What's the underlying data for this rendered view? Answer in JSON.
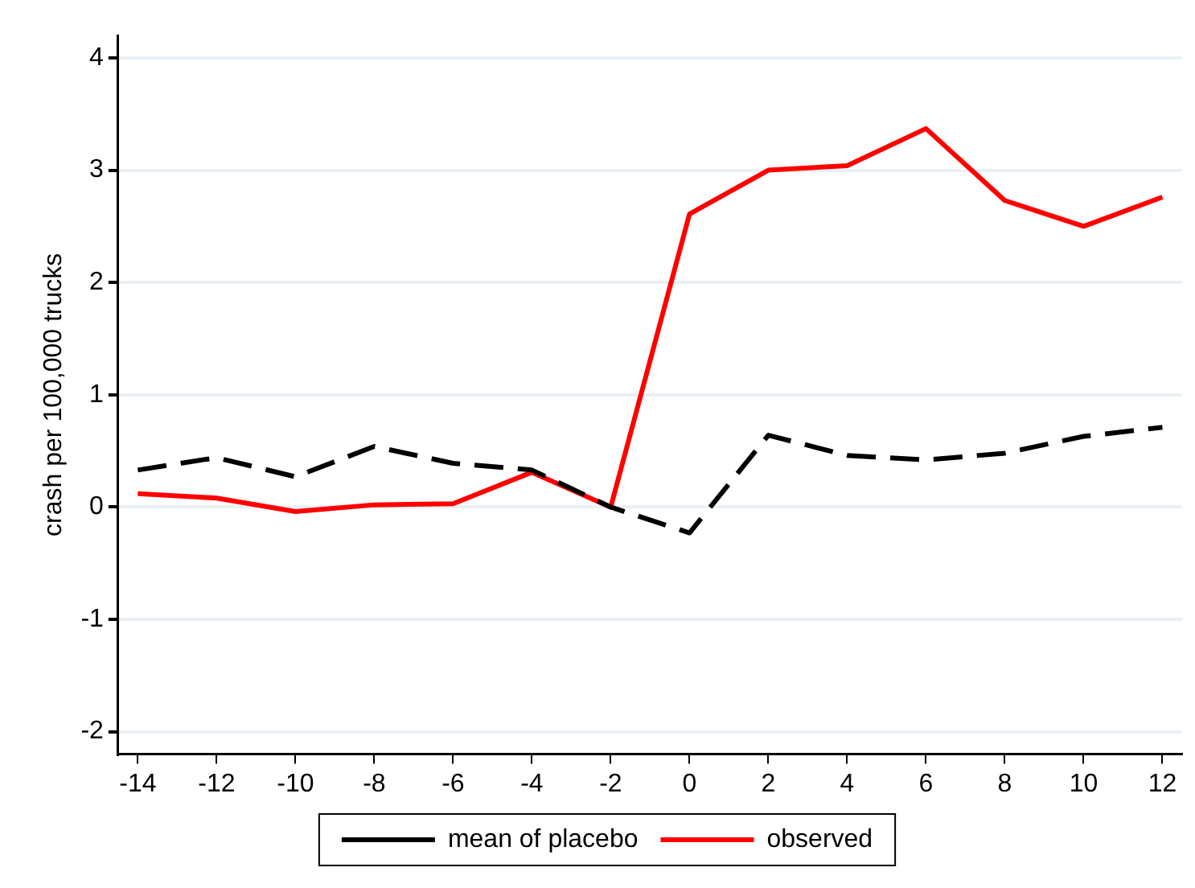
{
  "chart_data": {
    "type": "line",
    "ylabel": "crash per 100,000 trucks",
    "x": [
      -14,
      -12,
      -10,
      -8,
      -6,
      -4,
      -2,
      0,
      2,
      4,
      6,
      8,
      10,
      12
    ],
    "series": [
      {
        "name": "mean of placebo",
        "color": "#000000",
        "line_style": "dashed",
        "values": [
          0.33,
          0.44,
          0.27,
          0.54,
          0.39,
          0.33,
          0,
          -0.23,
          0.64,
          0.46,
          0.42,
          0.48,
          0.63,
          0.71
        ]
      },
      {
        "name": "observed",
        "color": "#ff0000",
        "line_style": "solid",
        "values": [
          0.12,
          0.08,
          -0.04,
          0.02,
          0.03,
          0.31,
          0,
          2.61,
          3.0,
          3.04,
          3.37,
          2.73,
          2.5,
          2.76
        ]
      }
    ],
    "xlim": [
      -14.5,
      12.5
    ],
    "xticks": [
      -14,
      -12,
      -10,
      -8,
      -6,
      -4,
      -2,
      0,
      2,
      4,
      6,
      8,
      10,
      12
    ],
    "ylim": [
      -2.2,
      4.2
    ],
    "yticks": [
      -2,
      -1,
      0,
      1,
      2,
      3,
      4
    ],
    "grid": "y",
    "legend": "bottom",
    "marker": "none"
  }
}
